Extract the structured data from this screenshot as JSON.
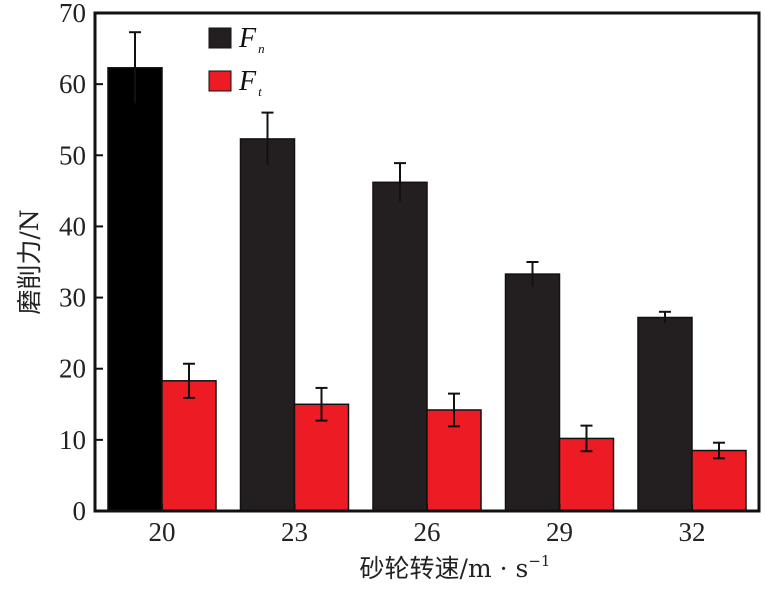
{
  "chart_data": {
    "type": "bar",
    "title": "",
    "xlabel": "砂轮转速/m · s",
    "xlabel_sup": "−1",
    "ylabel": "磨削力/N",
    "categories": [
      "20",
      "23",
      "26",
      "29",
      "32"
    ],
    "ylim": [
      0,
      70
    ],
    "yticks": [
      0,
      10,
      20,
      30,
      40,
      50,
      60,
      70
    ],
    "grid": false,
    "legend_position": "top-left",
    "series": [
      {
        "name": "F",
        "subscript": "n",
        "color": "#231f20",
        "values": [
          62.3,
          52.3,
          46.2,
          33.3,
          27.2
        ],
        "errors": [
          5.0,
          3.7,
          2.7,
          1.7,
          0.8
        ]
      },
      {
        "name": "F",
        "subscript": "t",
        "color": "#ed1c24",
        "values": [
          18.3,
          15.0,
          14.2,
          10.2,
          8.5
        ],
        "errors": [
          2.4,
          2.3,
          2.3,
          1.8,
          1.1
        ]
      }
    ]
  }
}
